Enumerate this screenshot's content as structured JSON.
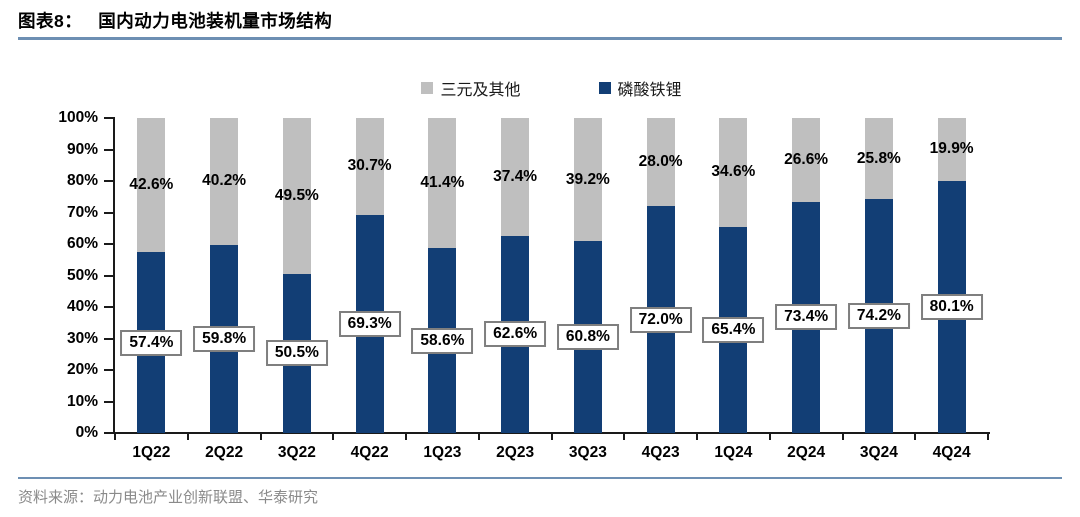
{
  "header": {
    "label": "图表8：",
    "title": "国内动力电池装机量市场结构"
  },
  "legend": [
    {
      "label": "三元及其他",
      "color": "#bfbfbf"
    },
    {
      "label": "磷酸铁锂",
      "color": "#123e75"
    }
  ],
  "chart_data": {
    "type": "bar",
    "stacked": true,
    "normalized": "100%",
    "title": "国内动力电池装机量市场结构",
    "xlabel": "",
    "ylabel": "",
    "ylim": [
      0,
      100
    ],
    "grid": false,
    "legend_position": "top",
    "categories": [
      "1Q22",
      "2Q22",
      "3Q22",
      "4Q22",
      "1Q23",
      "2Q23",
      "3Q23",
      "4Q23",
      "1Q24",
      "2Q24",
      "3Q24",
      "4Q24"
    ],
    "series": [
      {
        "name": "磷酸铁锂",
        "color": "#123e75",
        "values": [
          57.4,
          59.8,
          50.5,
          69.3,
          58.6,
          62.6,
          60.8,
          72.0,
          65.4,
          73.4,
          74.2,
          80.1
        ]
      },
      {
        "name": "三元及其他",
        "color": "#bfbfbf",
        "values": [
          42.6,
          40.2,
          49.5,
          30.7,
          41.4,
          37.4,
          39.2,
          28.0,
          34.6,
          26.6,
          25.8,
          19.9
        ]
      }
    ],
    "y_ticks": [
      "100%",
      "90%",
      "80%",
      "70%",
      "60%",
      "50%",
      "40%",
      "30%",
      "20%",
      "10%",
      "0%"
    ],
    "label_format": "one_decimal_percent"
  },
  "footer": {
    "source": "资料来源：动力电池产业创新联盟、华泰研究"
  }
}
